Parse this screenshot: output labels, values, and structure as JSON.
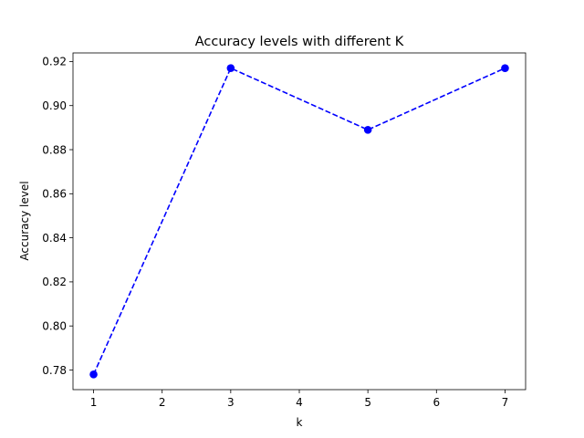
{
  "chart_data": {
    "type": "line",
    "title": "Accuracy levels with different K",
    "xlabel": "k",
    "ylabel": "Accuracy level",
    "x": [
      1,
      3,
      5,
      7
    ],
    "series": [
      {
        "values": [
          0.778,
          0.917,
          0.889,
          0.917
        ],
        "color": "#0000ff",
        "line_style": "dashed",
        "marker": "circle"
      }
    ],
    "xlim": [
      0.7,
      7.3
    ],
    "ylim": [
      0.7711,
      0.9239
    ],
    "x_ticks": [
      1,
      2,
      3,
      4,
      5,
      6,
      7
    ],
    "y_ticks": [
      0.78,
      0.8,
      0.82,
      0.84,
      0.86,
      0.88,
      0.9,
      0.92
    ],
    "x_tick_labels": [
      "1",
      "2",
      "3",
      "4",
      "5",
      "6",
      "7"
    ],
    "y_tick_labels": [
      "0.78",
      "0.80",
      "0.82",
      "0.84",
      "0.86",
      "0.88",
      "0.90",
      "0.92"
    ],
    "grid": false,
    "legend": "none"
  }
}
